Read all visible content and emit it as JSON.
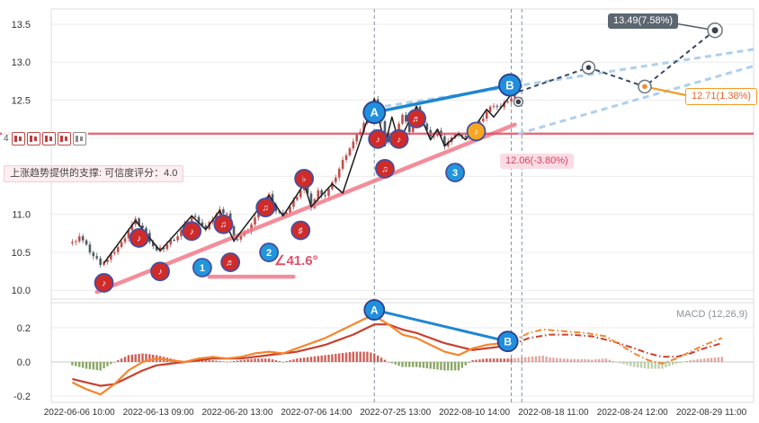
{
  "axes": {
    "price_ticks": [
      "13.5",
      "13.0",
      "12.5",
      "12.0",
      "11.5",
      "11.0",
      "10.5",
      "10.0"
    ],
    "price_tick_values": [
      13.5,
      13.0,
      12.5,
      12.0,
      11.5,
      11.0,
      10.5,
      10.0
    ],
    "macd_ticks": [
      "0.2",
      "0.0",
      "-0.2"
    ],
    "macd_tick_values": [
      0.2,
      0.0,
      -0.2
    ],
    "x_labels": [
      "2022-06-06 10:00",
      "2022-06-13 09:00",
      "2022-06-20 13:00",
      "2022-07-06 14:00",
      "2022-07-25 13:00",
      "2022-08-10 14:00",
      "2022-08-18 11:00",
      "2022-08-24 12:00",
      "2022-08-29 11:00"
    ],
    "x_label_slots": [
      8,
      30.5,
      53,
      75.5,
      98,
      120.5,
      143,
      165.5,
      188
    ]
  },
  "overlays": {
    "support_note": "上涨趋势提供的支撑: 可信度评分：4.0",
    "angle_label": "∠41.6°",
    "macd_label": "MACD (12,26,9)",
    "toolbar_count": "4",
    "tooltips": {
      "high": "13.49(7.58%)",
      "mid": "12.71(1.38%)",
      "low": "12.06(-3.80%)"
    }
  },
  "colors": {
    "candle_up": "#bf4f4d",
    "candle_down": "#4f5b66",
    "zigzag": "#1b1b1b",
    "support_pink": "#f2798a",
    "hline_red": "#e05263",
    "ab_blue": "#1e86d0",
    "channel_lightblue": "#aecfec",
    "forecast_navy": "#3a4a63",
    "node_ring": "#6b7680",
    "node_dot": "#39434d",
    "node_dot_orange": "#f08c2e",
    "dif_orange": "#f5862c",
    "dea_red": "#c8402e",
    "hist_pos": "#cf5f57",
    "hist_neg": "#8aa766",
    "vline": "#7f93a6",
    "grid": "#ececec",
    "frame": "#dddddd",
    "marker_note_fill": "#cf2b2b",
    "marker_orange_fill": "#f5a623",
    "marker_ring": "#4450a0",
    "marker_num_fill": "#2196dd",
    "marker_ab_fill": "#1f8fde",
    "marker_ab_ring": "#2b3f8c",
    "connector_dark": "#55606a",
    "connector_orange": "#f59a23"
  },
  "chart_data": [
    {
      "type": "candlestick",
      "panel": "price",
      "ylim": [
        9.9,
        13.7
      ],
      "yticks": [
        10.0,
        10.5,
        11.0,
        11.5,
        12.0,
        12.5,
        13.0,
        13.5
      ],
      "hline_price": 12.06,
      "closes": [
        [
          6,
          10.62
        ],
        [
          8,
          10.72
        ],
        [
          10,
          10.58
        ],
        [
          12,
          10.45
        ],
        [
          14,
          10.36
        ],
        [
          16,
          10.4
        ],
        [
          18,
          10.52
        ],
        [
          20,
          10.62
        ],
        [
          22,
          10.8
        ],
        [
          24,
          10.92
        ],
        [
          26,
          10.82
        ],
        [
          28,
          10.66
        ],
        [
          30,
          10.52
        ],
        [
          32,
          10.56
        ],
        [
          34,
          10.65
        ],
        [
          36,
          10.72
        ],
        [
          38,
          10.85
        ],
        [
          40,
          10.98
        ],
        [
          42,
          10.92
        ],
        [
          44,
          10.8
        ],
        [
          46,
          10.95
        ],
        [
          48,
          11.05
        ],
        [
          50,
          11.02
        ],
        [
          52,
          10.65
        ],
        [
          54,
          10.72
        ],
        [
          56,
          10.8
        ],
        [
          58,
          10.95
        ],
        [
          60,
          11.15
        ],
        [
          62,
          11.25
        ],
        [
          64,
          11.05
        ],
        [
          66,
          10.98
        ],
        [
          68,
          11.1
        ],
        [
          70,
          11.25
        ],
        [
          72,
          11.4
        ],
        [
          74,
          11.1
        ],
        [
          76,
          11.3
        ],
        [
          78,
          11.25
        ],
        [
          80,
          11.4
        ],
        [
          82,
          11.6
        ],
        [
          84,
          11.8
        ],
        [
          86,
          11.95
        ],
        [
          88,
          12.1
        ],
        [
          90,
          12.3
        ],
        [
          92,
          12.52
        ],
        [
          94,
          12.2
        ],
        [
          96,
          11.95
        ],
        [
          98,
          12.1
        ],
        [
          100,
          12.3
        ],
        [
          102,
          12.1
        ],
        [
          104,
          12.4
        ],
        [
          106,
          12.2
        ],
        [
          108,
          12.0
        ],
        [
          110,
          12.1
        ],
        [
          112,
          11.92
        ],
        [
          114,
          12.0
        ],
        [
          116,
          12.06
        ],
        [
          118,
          12.0
        ],
        [
          120,
          12.1
        ],
        [
          122,
          12.2
        ],
        [
          124,
          12.35
        ],
        [
          126,
          12.45
        ],
        [
          128,
          12.4
        ],
        [
          130,
          12.5
        ],
        [
          132,
          12.55
        ]
      ],
      "zigzag": [
        [
          15,
          10.36
        ],
        [
          24,
          10.92
        ],
        [
          31,
          10.52
        ],
        [
          40,
          10.98
        ],
        [
          44,
          10.8
        ],
        [
          48,
          11.05
        ],
        [
          52,
          10.65
        ],
        [
          62,
          11.25
        ],
        [
          66,
          10.98
        ],
        [
          72,
          11.4
        ],
        [
          74,
          11.1
        ],
        [
          80,
          11.4
        ],
        [
          83,
          11.28
        ],
        [
          92,
          12.52
        ],
        [
          95,
          11.9
        ],
        [
          97,
          12.28
        ],
        [
          99,
          11.95
        ],
        [
          104,
          12.42
        ],
        [
          108,
          11.98
        ],
        [
          110,
          12.12
        ],
        [
          112,
          11.9
        ],
        [
          116,
          12.06
        ],
        [
          118,
          11.98
        ],
        [
          124,
          12.38
        ],
        [
          126,
          12.28
        ],
        [
          131,
          12.58
        ]
      ],
      "support_line": [
        [
          13,
          9.98
        ],
        [
          132,
          12.18
        ]
      ],
      "angle_base_line": [
        [
          45,
          10.18
        ],
        [
          69,
          10.18
        ]
      ],
      "ab_line": [
        [
          92,
          12.34
        ],
        [
          130.6,
          12.7
        ]
      ],
      "channel_lines": [
        [
          [
            92,
            12.4
          ],
          [
            200,
            13.17
          ]
        ],
        [
          [
            133,
            12.06
          ],
          [
            200,
            12.95
          ]
        ]
      ],
      "forecast_polyline": [
        [
          131,
          12.58
        ],
        [
          153,
          12.93
        ],
        [
          169,
          12.68
        ],
        [
          189,
          13.42
        ]
      ],
      "forecast_nodes": [
        [
          133,
          12.48
        ],
        [
          153,
          12.93
        ],
        [
          169,
          12.68
        ],
        [
          189,
          13.42
        ]
      ],
      "vlines": [
        92,
        131,
        134
      ],
      "markers": [
        {
          "s": 15,
          "p": 10.1,
          "label": "♪",
          "kind": "note"
        },
        {
          "s": 25,
          "p": 10.69,
          "label": "♪",
          "kind": "note"
        },
        {
          "s": 31,
          "p": 10.25,
          "label": "♪",
          "kind": "note"
        },
        {
          "s": 40,
          "p": 10.78,
          "label": "♪",
          "kind": "note"
        },
        {
          "s": 49,
          "p": 10.87,
          "label": "♫",
          "kind": "note"
        },
        {
          "s": 51,
          "p": 10.37,
          "label": "♬",
          "kind": "note"
        },
        {
          "s": 61,
          "p": 11.09,
          "label": "♫",
          "kind": "note"
        },
        {
          "s": 71,
          "p": 10.79,
          "label": "♯",
          "kind": "note"
        },
        {
          "s": 72,
          "p": 11.47,
          "label": "♭",
          "kind": "note"
        },
        {
          "s": 93,
          "p": 11.99,
          "label": "♪",
          "kind": "note"
        },
        {
          "s": 95,
          "p": 11.6,
          "label": "♫",
          "kind": "note"
        },
        {
          "s": 99,
          "p": 11.99,
          "label": "♪",
          "kind": "note"
        },
        {
          "s": 104,
          "p": 12.26,
          "label": "♬",
          "kind": "note"
        },
        {
          "s": 121,
          "p": 12.09,
          "label": "♪",
          "kind": "orange-note"
        },
        {
          "s": 43,
          "p": 10.3,
          "label": "1",
          "kind": "num"
        },
        {
          "s": 62,
          "p": 10.5,
          "label": "2",
          "kind": "num"
        },
        {
          "s": 115,
          "p": 11.55,
          "label": "3",
          "kind": "num"
        },
        {
          "s": 92,
          "p": 12.34,
          "label": "A",
          "kind": "ab"
        },
        {
          "s": 130.6,
          "p": 12.7,
          "label": "B",
          "kind": "ab"
        }
      ]
    },
    {
      "type": "line",
      "panel": "macd",
      "label": "MACD (12,26,9)",
      "ylim": [
        -0.24,
        0.35
      ],
      "yticks": [
        -0.2,
        0.0,
        0.2
      ],
      "histogram_rule": "dif_minus_dea",
      "dif": [
        [
          6,
          -0.12
        ],
        [
          10,
          -0.16
        ],
        [
          14,
          -0.19
        ],
        [
          18,
          -0.13
        ],
        [
          22,
          -0.05
        ],
        [
          26,
          0.0
        ],
        [
          30,
          0.02
        ],
        [
          34,
          0.01
        ],
        [
          38,
          0.0
        ],
        [
          42,
          0.02
        ],
        [
          46,
          0.03
        ],
        [
          50,
          0.02
        ],
        [
          54,
          0.03
        ],
        [
          58,
          0.05
        ],
        [
          62,
          0.06
        ],
        [
          66,
          0.05
        ],
        [
          70,
          0.08
        ],
        [
          74,
          0.11
        ],
        [
          78,
          0.14
        ],
        [
          82,
          0.18
        ],
        [
          86,
          0.22
        ],
        [
          90,
          0.26
        ],
        [
          92,
          0.27
        ],
        [
          96,
          0.22
        ],
        [
          100,
          0.16
        ],
        [
          104,
          0.14
        ],
        [
          108,
          0.1
        ],
        [
          112,
          0.06
        ],
        [
          116,
          0.04
        ],
        [
          120,
          0.08
        ],
        [
          124,
          0.1
        ],
        [
          128,
          0.11
        ],
        [
          131,
          0.12
        ]
      ],
      "dea": [
        [
          6,
          -0.1
        ],
        [
          10,
          -0.12
        ],
        [
          14,
          -0.14
        ],
        [
          18,
          -0.13
        ],
        [
          22,
          -0.09
        ],
        [
          26,
          -0.05
        ],
        [
          30,
          -0.02
        ],
        [
          34,
          -0.01
        ],
        [
          38,
          0.0
        ],
        [
          42,
          0.01
        ],
        [
          46,
          0.02
        ],
        [
          50,
          0.02
        ],
        [
          54,
          0.02
        ],
        [
          58,
          0.03
        ],
        [
          62,
          0.04
        ],
        [
          66,
          0.05
        ],
        [
          70,
          0.06
        ],
        [
          74,
          0.08
        ],
        [
          78,
          0.1
        ],
        [
          82,
          0.13
        ],
        [
          86,
          0.16
        ],
        [
          90,
          0.2
        ],
        [
          92,
          0.22
        ],
        [
          96,
          0.22
        ],
        [
          100,
          0.19
        ],
        [
          104,
          0.17
        ],
        [
          108,
          0.14
        ],
        [
          112,
          0.11
        ],
        [
          116,
          0.09
        ],
        [
          120,
          0.07
        ],
        [
          124,
          0.08
        ],
        [
          128,
          0.09
        ],
        [
          131,
          0.1
        ]
      ],
      "dif_forecast": [
        [
          131,
          0.12
        ],
        [
          136,
          0.17
        ],
        [
          140,
          0.19
        ],
        [
          146,
          0.18
        ],
        [
          152,
          0.17
        ],
        [
          158,
          0.15
        ],
        [
          162,
          0.1
        ],
        [
          166,
          0.05
        ],
        [
          170,
          0.01
        ],
        [
          174,
          -0.01
        ],
        [
          178,
          0.02
        ],
        [
          182,
          0.06
        ],
        [
          186,
          0.1
        ],
        [
          191,
          0.14
        ]
      ],
      "dea_forecast": [
        [
          131,
          0.1
        ],
        [
          136,
          0.14
        ],
        [
          142,
          0.16
        ],
        [
          148,
          0.16
        ],
        [
          154,
          0.15
        ],
        [
          160,
          0.12
        ],
        [
          166,
          0.08
        ],
        [
          170,
          0.05
        ],
        [
          174,
          0.03
        ],
        [
          178,
          0.03
        ],
        [
          182,
          0.05
        ],
        [
          186,
          0.08
        ],
        [
          191,
          0.11
        ]
      ],
      "ab_markers": [
        {
          "s": 92,
          "v": 0.305,
          "label": "A"
        },
        {
          "s": 130,
          "v": 0.12,
          "label": "B"
        }
      ],
      "vlines": [
        92,
        131,
        134
      ]
    }
  ]
}
